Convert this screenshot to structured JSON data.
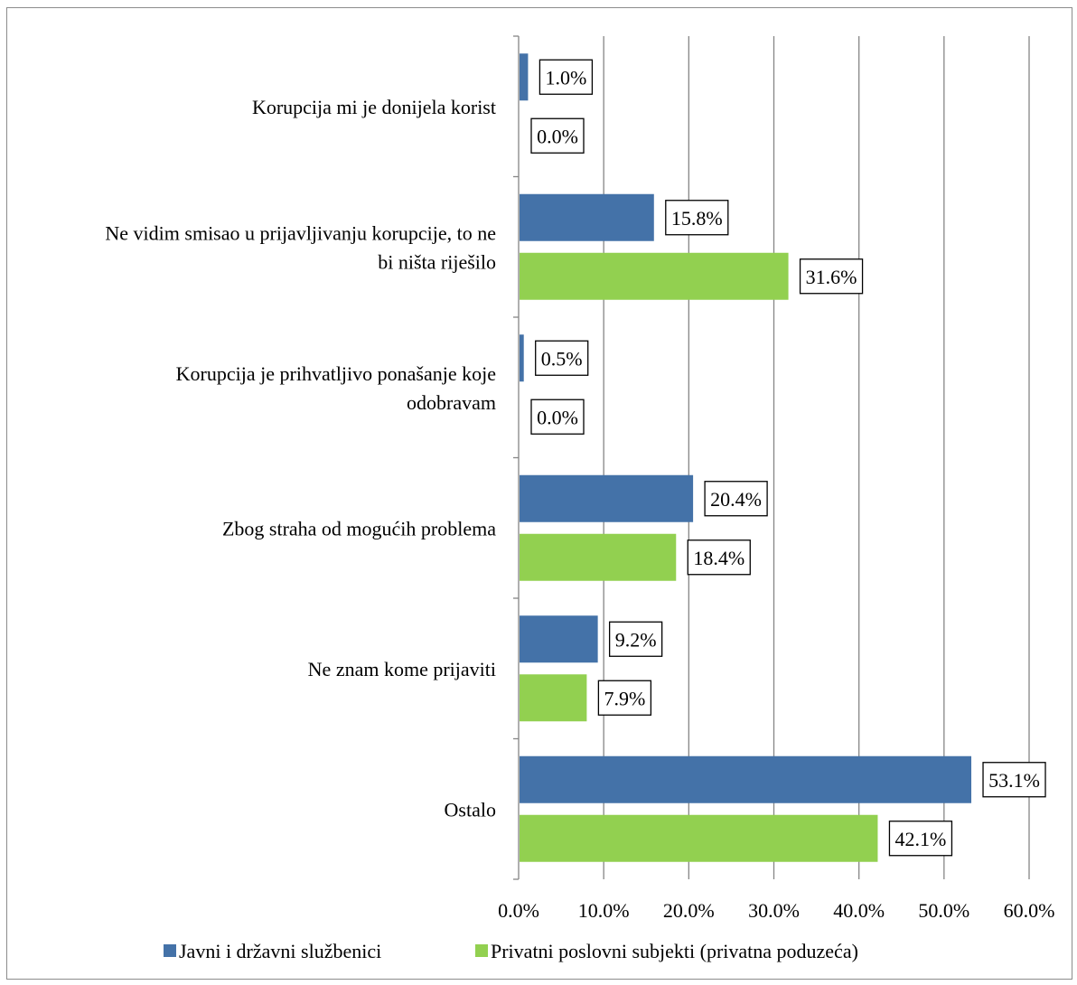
{
  "chart_data": {
    "type": "bar",
    "orientation": "horizontal",
    "categories": [
      "Korupcija mi je donijela korist",
      "Ne vidim smisao u prijavljivanju korupcije, to ne bi ništa riješilo",
      "Korupcija je prihvatljivo ponašanje koje odobravam",
      "Zbog straha od mogućih problema",
      "Ne znam kome prijaviti",
      "Ostalo"
    ],
    "category_lines": [
      [
        "Korupcija mi je donijela korist"
      ],
      [
        "Ne vidim smisao u prijavljivanju korupcije, to ne",
        "bi ništa riješilo"
      ],
      [
        "Korupcija je prihvatljivo ponašanje koje",
        "odobravam"
      ],
      [
        "Zbog straha od mogućih problema"
      ],
      [
        "Ne znam kome prijaviti"
      ],
      [
        "Ostalo"
      ]
    ],
    "series": [
      {
        "name": "Javni i državni službenici",
        "color": "#4472a8",
        "values": [
          1.0,
          15.8,
          0.5,
          20.4,
          9.2,
          53.1
        ],
        "labels": [
          "1.0%",
          "15.8%",
          "0.5%",
          "20.4%",
          "9.2%",
          "53.1%"
        ]
      },
      {
        "name": "Privatni poslovni subjekti (privatna poduzeća)",
        "color": "#92d050",
        "values": [
          0.0,
          31.6,
          0.0,
          18.4,
          7.9,
          42.1
        ],
        "labels": [
          "0.0%",
          "31.6%",
          "0.0%",
          "18.4%",
          "7.9%",
          "42.1%"
        ]
      }
    ],
    "xlim": [
      0,
      60
    ],
    "xticks": [
      "0.0%",
      "10.0%",
      "20.0%",
      "30.0%",
      "40.0%",
      "50.0%",
      "60.0%"
    ],
    "grid": "vertical",
    "legend": "bottom"
  }
}
